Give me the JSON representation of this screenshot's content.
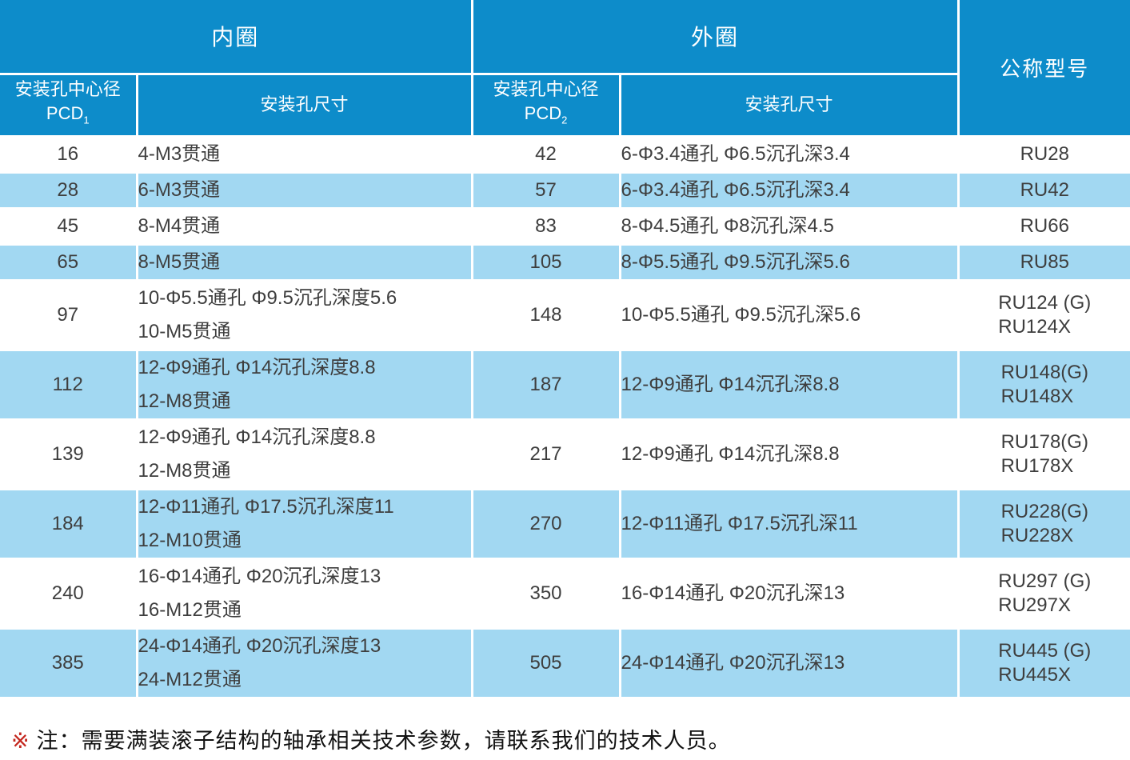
{
  "colors": {
    "header_blue": "#0D8CCA",
    "row_alt_blue": "#A2D8F2",
    "text_dark": "#3E3E3E",
    "footnote_mark_red": "#C4261D"
  },
  "table": {
    "header": {
      "inner_ring": "内圈",
      "outer_ring": "外圈",
      "model": "公称型号",
      "pcd1_label": "安装孔中心径",
      "pcd1_code": "PCD",
      "pcd1_sub": "1",
      "inner_hole_label": "安装孔尺寸",
      "pcd2_label": "安装孔中心径",
      "pcd2_code": "PCD",
      "pcd2_sub": "2",
      "outer_hole_label": "安装孔尺寸"
    },
    "rows": [
      {
        "pcd1": "16",
        "inner": [
          "4-M3贯通"
        ],
        "pcd2": "42",
        "outer": [
          "6-Φ3.4通孔 Φ6.5沉孔深3.4"
        ],
        "model": [
          "RU28"
        ]
      },
      {
        "pcd1": "28",
        "inner": [
          "6-M3贯通"
        ],
        "pcd2": "57",
        "outer": [
          "6-Φ3.4通孔 Φ6.5沉孔深3.4"
        ],
        "model": [
          "RU42"
        ]
      },
      {
        "pcd1": "45",
        "inner": [
          "8-M4贯通"
        ],
        "pcd2": "83",
        "outer": [
          "8-Φ4.5通孔 Φ8沉孔深4.5"
        ],
        "model": [
          "RU66"
        ]
      },
      {
        "pcd1": "65",
        "inner": [
          "8-M5贯通"
        ],
        "pcd2": "105",
        "outer": [
          "8-Φ5.5通孔 Φ9.5沉孔深5.6"
        ],
        "model": [
          "RU85"
        ]
      },
      {
        "pcd1": "97",
        "inner": [
          "10-Φ5.5通孔 Φ9.5沉孔深度5.6",
          "10-M5贯通"
        ],
        "pcd2": "148",
        "outer": [
          "10-Φ5.5通孔 Φ9.5沉孔深5.6"
        ],
        "model": [
          "RU124 (G)",
          "RU124X"
        ]
      },
      {
        "pcd1": "112",
        "inner": [
          "12-Φ9通孔 Φ14沉孔深度8.8",
          "12-M8贯通"
        ],
        "pcd2": "187",
        "outer": [
          "12-Φ9通孔 Φ14沉孔深8.8"
        ],
        "model": [
          "RU148(G)",
          "RU148X"
        ]
      },
      {
        "pcd1": "139",
        "inner": [
          "12-Φ9通孔 Φ14沉孔深度8.8",
          "12-M8贯通"
        ],
        "pcd2": "217",
        "outer": [
          "12-Φ9通孔 Φ14沉孔深8.8"
        ],
        "model": [
          "RU178(G)",
          "RU178X"
        ]
      },
      {
        "pcd1": "184",
        "inner": [
          "12-Φ11通孔 Φ17.5沉孔深度11",
          "12-M10贯通"
        ],
        "pcd2": "270",
        "outer": [
          "12-Φ11通孔 Φ17.5沉孔深11"
        ],
        "model": [
          "RU228(G)",
          "RU228X"
        ]
      },
      {
        "pcd1": "240",
        "inner": [
          "16-Φ14通孔 Φ20沉孔深度13",
          "16-M12贯通"
        ],
        "pcd2": "350",
        "outer": [
          "16-Φ14通孔 Φ20沉孔深13"
        ],
        "model": [
          "RU297 (G)",
          "RU297X"
        ]
      },
      {
        "pcd1": "385",
        "inner": [
          "24-Φ14通孔 Φ20沉孔深度13",
          "24-M12贯通"
        ],
        "pcd2": "505",
        "outer": [
          "24-Φ14通孔 Φ20沉孔深13"
        ],
        "model": [
          "RU445 (G)",
          "RU445X"
        ]
      }
    ]
  },
  "footnote": {
    "mark": "※",
    "label": "注：",
    "text": "需要满装滚子结构的轴承相关技术参数，请联系我们的技术人员。"
  }
}
